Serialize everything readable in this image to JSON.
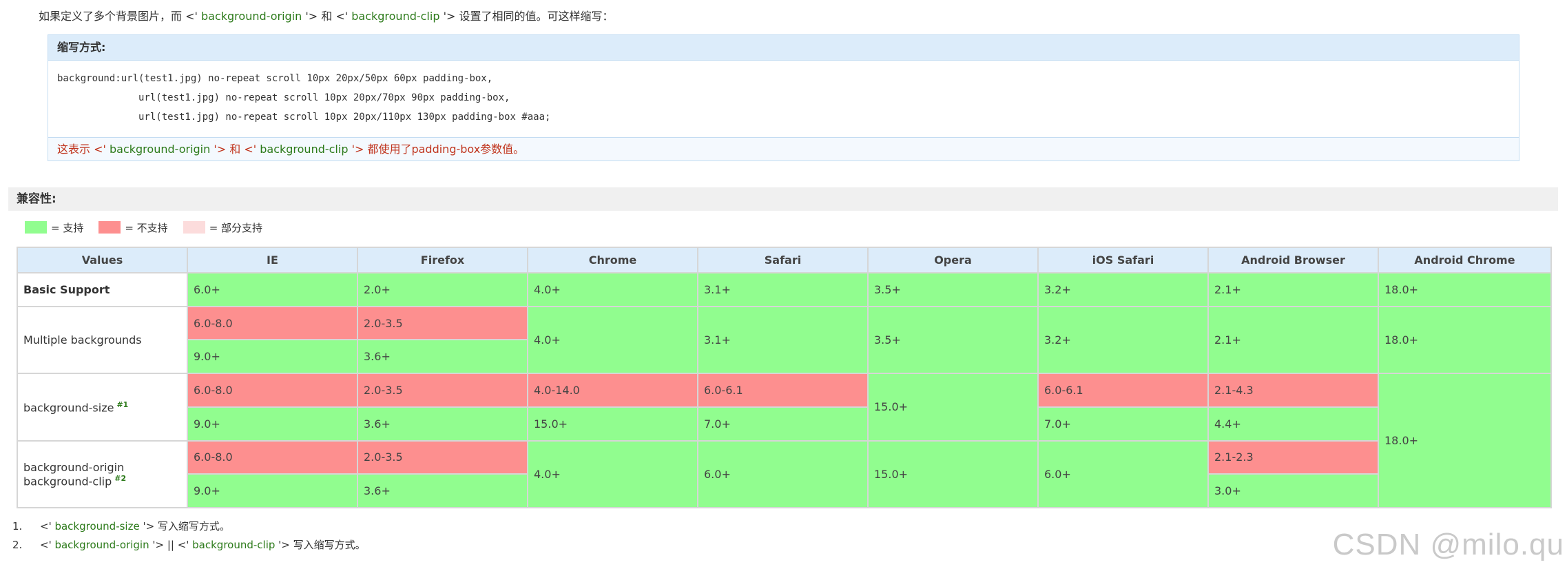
{
  "intro": {
    "prefix": "如果定义了多个背景图片，而 <'",
    "prop1": " background-origin ",
    "mid": "'> 和 <'",
    "prop2": " background-clip ",
    "suffix": "'> 设置了相同的值。可这样缩写："
  },
  "note": {
    "title": "缩写方式:",
    "code_lines": [
      "background:url(test1.jpg) no-repeat scroll 10px 20px/50px 60px padding-box,",
      "              url(test1.jpg) no-repeat scroll 10px 20px/70px 90px padding-box,",
      "              url(test1.jpg) no-repeat scroll 10px 20px/110px 130px padding-box #aaa;"
    ],
    "footer_prefix": "这表示 <'",
    "footer_prop1": " background-origin ",
    "footer_mid": "'> 和 <'",
    "footer_prop2": " background-clip ",
    "footer_suffix": "'> 都使用了padding-box参数值。"
  },
  "section": {
    "title": "兼容性:"
  },
  "legend": {
    "supported": "= 支持",
    "unsupported": "= 不支持",
    "partial": "= 部分支持",
    "colors": {
      "supported": "#91fd8f",
      "unsupported": "#fd8f8f",
      "partial": "#fcdcdc"
    }
  },
  "table": {
    "headers": [
      "Values",
      "IE",
      "Firefox",
      "Chrome",
      "Safari",
      "Opera",
      "iOS Safari",
      "Android Browser",
      "Android Chrome"
    ],
    "rows": {
      "basic": {
        "label": "Basic Support",
        "ie": "6.0+",
        "firefox": "2.0+",
        "chrome": "4.0+",
        "safari": "3.1+",
        "opera": "3.5+",
        "ios": "3.2+",
        "android": "2.1+",
        "androidchrome": "18.0+"
      },
      "multiple": {
        "label": "Multiple backgrounds",
        "ie_a": "6.0-8.0",
        "ie_b": "9.0+",
        "firefox_a": "2.0-3.5",
        "firefox_b": "3.6+",
        "chrome": "4.0+",
        "safari": "3.1+",
        "opera": "3.5+",
        "ios": "3.2+",
        "android": "2.1+",
        "androidchrome": "18.0+"
      },
      "size": {
        "label": "background-size",
        "ref": "#1",
        "ie_a": "6.0-8.0",
        "ie_b": "9.0+",
        "firefox_a": "2.0-3.5",
        "firefox_b": "3.6+",
        "chrome_a": "4.0-14.0",
        "chrome_b": "15.0+",
        "safari_a": "6.0-6.1",
        "safari_b": "7.0+",
        "opera": "15.0+",
        "ios_a": "6.0-6.1",
        "ios_b": "7.0+",
        "android_a": "2.1-4.3",
        "android_b": "4.4+",
        "androidchrome": "18.0+"
      },
      "origin": {
        "label1": "background-origin",
        "label2": "background-clip",
        "ref": "#2",
        "ie_a": "6.0-8.0",
        "ie_b": "9.0+",
        "firefox_a": "2.0-3.5",
        "firefox_b": "3.6+",
        "chrome": "4.0+",
        "safari": "6.0+",
        "opera": "15.0+",
        "ios": "6.0+",
        "android_a": "2.1-2.3",
        "android_b": "3.0+"
      }
    }
  },
  "footnotes": [
    {
      "num": "1.",
      "pre": "<'",
      "prop": " background-size ",
      "post": "'> 写入缩写方式。"
    },
    {
      "num": "2.",
      "pre": "<'",
      "prop": " background-origin ",
      "mid": "'> || <'",
      "prop2": " background-clip ",
      "post": "'> 写入缩写方式。"
    }
  ],
  "watermark": "CSDN @milo.qu"
}
